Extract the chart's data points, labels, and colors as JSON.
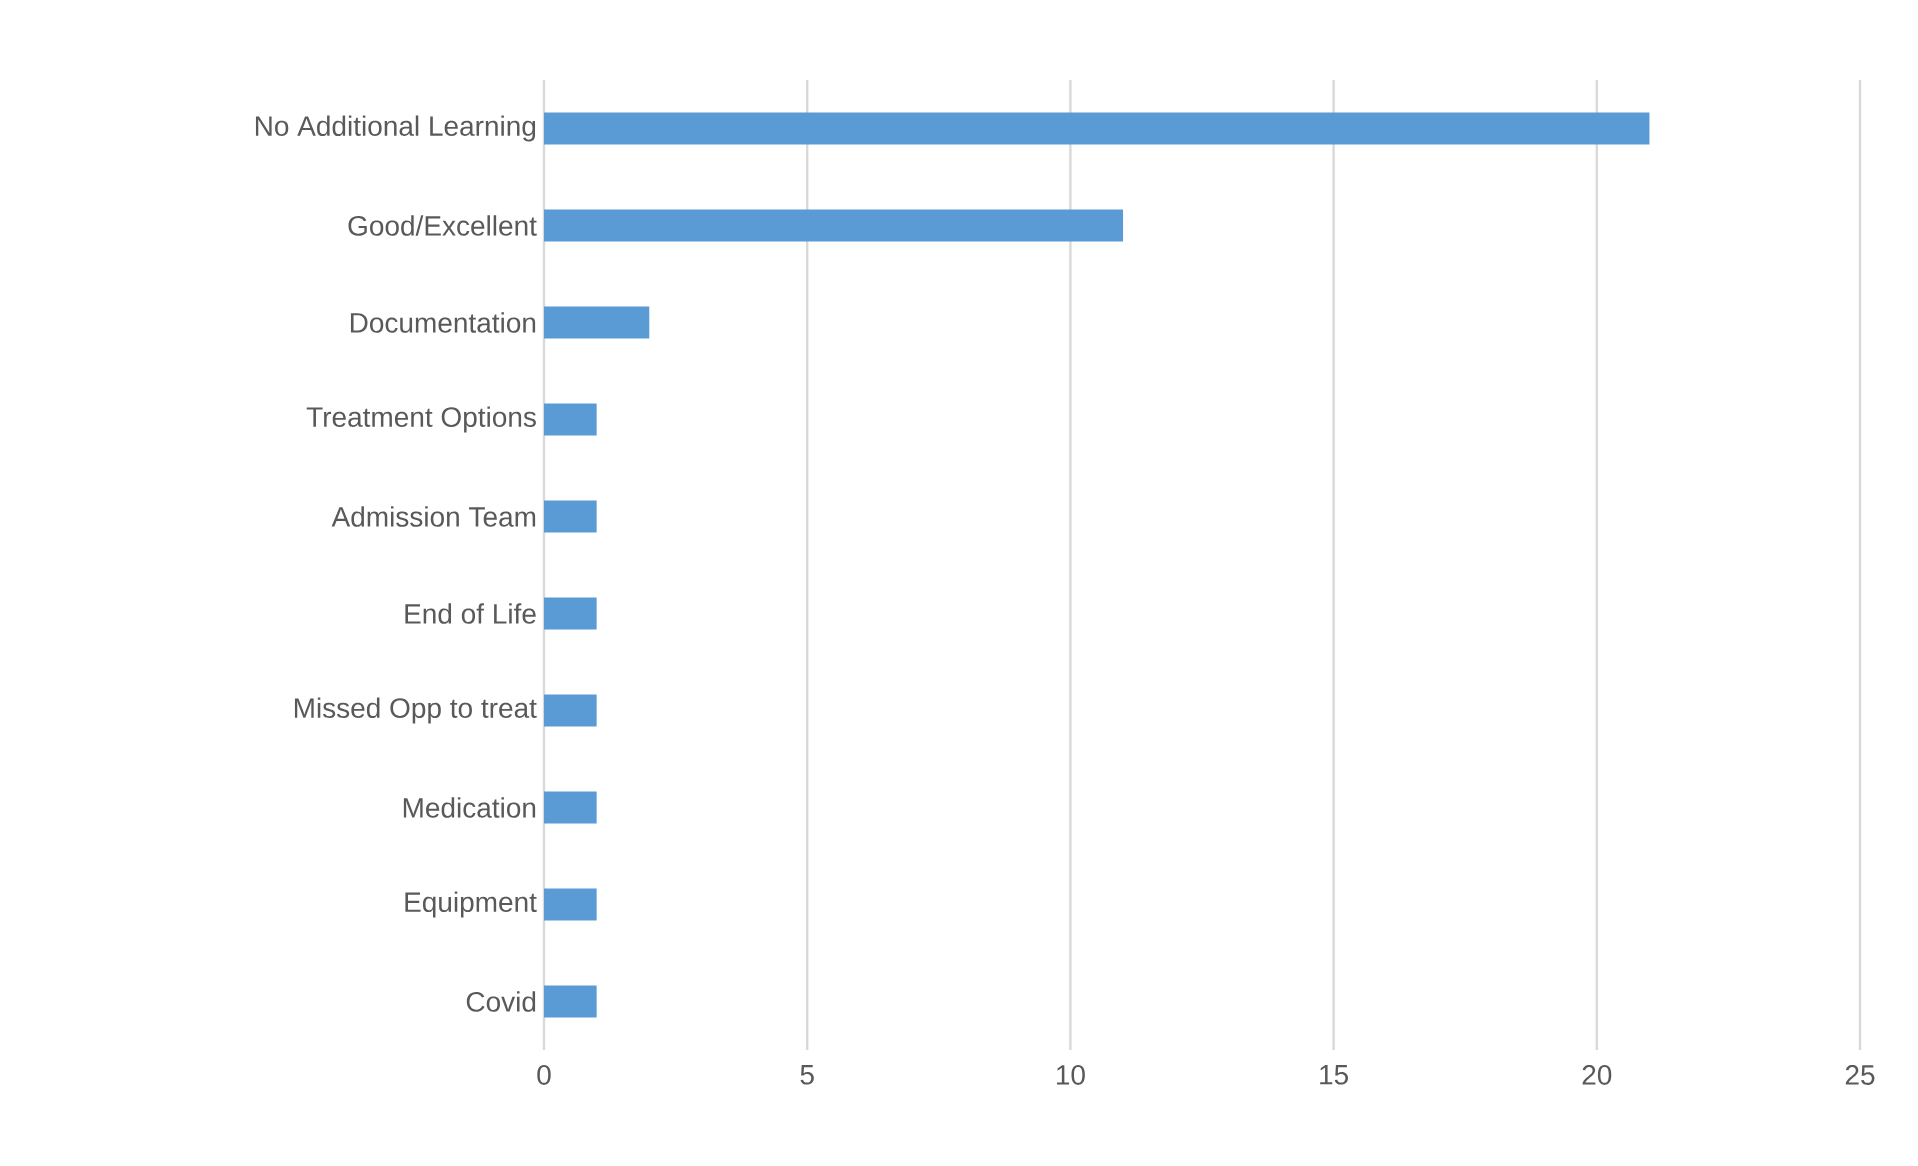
{
  "chart_data": {
    "type": "bar",
    "orientation": "horizontal",
    "categories": [
      "No Additional Learning",
      "Good/Excellent",
      "Documentation",
      "Treatment Options",
      "Admission Team",
      "End of Life",
      "Missed Opp to treat",
      "Medication",
      "Equipment",
      "Covid"
    ],
    "values": [
      21,
      11,
      2,
      1,
      1,
      1,
      1,
      1,
      1,
      1
    ],
    "color": "#5b9bd5",
    "xlim": [
      0,
      25
    ],
    "xticks": [
      0,
      5,
      10,
      15,
      20,
      25
    ],
    "grid": "x"
  }
}
